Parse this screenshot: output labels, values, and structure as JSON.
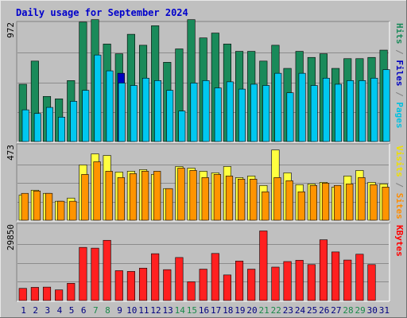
{
  "chart_data": {
    "type": "bar",
    "title": "Daily usage for September 2024",
    "title_color": "#0000cc",
    "x": [
      "1",
      "2",
      "3",
      "4",
      "5",
      "6",
      "7",
      "8",
      "9",
      "10",
      "11",
      "12",
      "13",
      "14",
      "15",
      "16",
      "17",
      "18",
      "19",
      "20",
      "21",
      "22",
      "23",
      "24",
      "25",
      "26",
      "27",
      "28",
      "29",
      "30",
      "31"
    ],
    "weekend_days": [
      "7",
      "8",
      "14",
      "15",
      "21",
      "22",
      "28",
      "29"
    ],
    "weekday_label_color": "#000080",
    "weekend_label_color": "#1a8a4a",
    "grid": true,
    "panels": [
      {
        "name": "hits-files-pages",
        "ymax_label": "972",
        "ymax": 972,
        "side_labels": [
          {
            "text": "Pages",
            "color": "#00c0e0"
          },
          {
            "text": "Files",
            "color": "#0000c0"
          },
          {
            "text": "Hits",
            "color": "#1a8a5a"
          }
        ],
        "series": [
          {
            "name": "Hits",
            "color": "#1a8a5a",
            "values": [
              470,
              660,
              370,
              350,
              500,
              980,
              1000,
              800,
              720,
              880,
              790,
              950,
              650,
              760,
              1000,
              850,
              890,
              800,
              740,
              740,
              660,
              790,
              600,
              740,
              690,
              720,
              600,
              680,
              680,
              690,
              750
            ]
          },
          {
            "name": "Files",
            "color": "#0000c0",
            "values": [
              0,
              0,
              0,
              0,
              0,
              0,
              0,
              0,
              560,
              0,
              0,
              0,
              0,
              0,
              0,
              0,
              0,
              0,
              0,
              0,
              0,
              0,
              0,
              0,
              0,
              0,
              0,
              0,
              0,
              0,
              0
            ]
          },
          {
            "name": "Pages",
            "color": "#00c8f0",
            "values": [
              260,
              230,
              280,
              200,
              330,
              420,
              710,
              580,
              480,
              460,
              520,
              500,
              420,
              250,
              480,
              500,
              440,
              490,
              430,
              470,
              460,
              560,
              400,
              560,
              460,
              520,
              470,
              500,
              500,
              520,
              590
            ]
          }
        ]
      },
      {
        "name": "sites-visits",
        "ymax_label": "473",
        "ymax": 473,
        "side_labels": [
          {
            "text": "Sites",
            "color": "#ff8c00"
          },
          {
            "text": "Visits",
            "color": "#f0e000"
          }
        ],
        "series": [
          {
            "name": "Visits",
            "color": "#ffff40",
            "values": [
              160,
              190,
              170,
              120,
              140,
              350,
              420,
              410,
              305,
              310,
              320,
              290,
              200,
              340,
              330,
              310,
              300,
              340,
              270,
              280,
              220,
              445,
              300,
              225,
              230,
              240,
              210,
              280,
              315,
              240,
              230
            ]
          },
          {
            "name": "Sites",
            "color": "#ff9400",
            "values": [
              170,
              185,
              170,
              120,
              120,
              290,
              370,
              310,
              270,
              295,
              310,
              310,
              200,
              330,
              315,
              270,
              290,
              280,
              260,
              260,
              180,
              270,
              250,
              180,
              220,
              235,
              220,
              230,
              270,
              225,
              210
            ]
          }
        ]
      },
      {
        "name": "kbytes",
        "ymax_label": "29850",
        "ymax": 29850,
        "side_labels": [
          {
            "text": "KBytes",
            "color": "#ff0000"
          }
        ],
        "series": [
          {
            "name": "KBytes",
            "color": "#ff2020",
            "values": [
              4800,
              5200,
              5300,
              4200,
              6800,
              21000,
              20700,
              23800,
              11800,
              11500,
              12800,
              18500,
              12200,
              17000,
              7400,
              12400,
              18600,
              10100,
              15600,
              12400,
              27500,
              13200,
              15400,
              15900,
              14200,
              24000,
              19200,
              16000,
              18300,
              14200,
              0
            ]
          }
        ]
      }
    ]
  }
}
